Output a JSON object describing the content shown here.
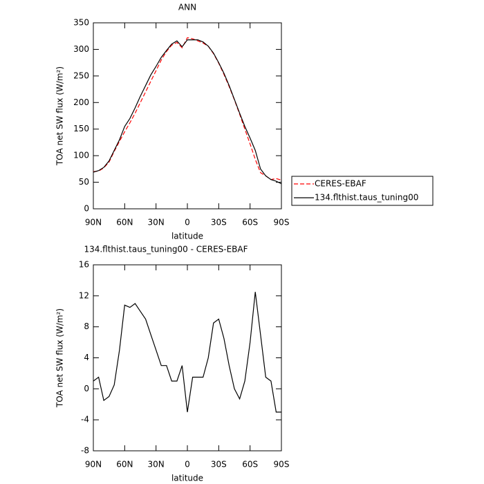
{
  "chart_data": [
    {
      "type": "line",
      "title": "ANN",
      "x_label": "latitude",
      "y_label": "TOA net SW flux (W/m²)",
      "x": [
        90,
        85,
        80,
        75,
        70,
        65,
        60,
        55,
        50,
        45,
        40,
        35,
        30,
        25,
        20,
        15,
        10,
        5,
        0,
        -5,
        -10,
        -15,
        -20,
        -25,
        -30,
        -35,
        -40,
        -45,
        -50,
        -55,
        -60,
        -65,
        -70,
        -75,
        -80,
        -85,
        -90
      ],
      "series": [
        {
          "name": "CERES-EBAF",
          "color": "#ff0000",
          "dashed": true,
          "values": [
            70,
            71,
            77,
            88,
            108,
            127,
            145,
            162,
            180,
            200,
            220,
            240,
            260,
            280,
            296,
            308,
            313,
            303,
            322,
            320,
            316,
            312,
            306,
            292,
            274,
            253,
            230,
            205,
            178,
            150,
            122,
            93,
            68,
            62,
            55,
            57,
            54
          ]
        },
        {
          "name": "134.flthist.taus_tuning00",
          "color": "#000000",
          "dashed": false,
          "values": [
            69,
            72,
            78,
            90,
            110,
            130,
            155,
            170,
            190,
            212,
            232,
            252,
            268,
            285,
            298,
            310,
            316,
            305,
            318,
            318,
            318,
            314,
            306,
            293,
            275,
            255,
            232,
            206,
            180,
            155,
            133,
            110,
            75,
            62,
            55,
            52,
            47
          ]
        }
      ],
      "xlim": [
        90,
        -90
      ],
      "xticks": [
        {
          "value": 90,
          "label": "90N"
        },
        {
          "value": 60,
          "label": "60N"
        },
        {
          "value": 30,
          "label": "30N"
        },
        0,
        {
          "value": -30,
          "label": "30S"
        },
        {
          "value": -60,
          "label": "60S"
        },
        {
          "value": -90,
          "label": "90S"
        }
      ],
      "ylim": [
        0,
        350
      ],
      "yticks": [
        0,
        50,
        100,
        150,
        200,
        250,
        300,
        350
      ],
      "legend": "right"
    },
    {
      "type": "line",
      "title": "134.flthist.taus_tuning00 - CERES-EBAF",
      "x_label": "latitude",
      "y_label": "TOA net SW flux (W/m²)",
      "x": [
        90,
        85,
        80,
        75,
        70,
        65,
        60,
        55,
        50,
        45,
        40,
        35,
        30,
        25,
        20,
        15,
        10,
        5,
        0,
        -5,
        -10,
        -15,
        -20,
        -25,
        -30,
        -35,
        -40,
        -45,
        -50,
        -55,
        -60,
        -65,
        -70,
        -75,
        -80,
        -85,
        -90
      ],
      "series": [
        {
          "color": "#000000",
          "dashed": false,
          "values": [
            1,
            1.5,
            -1.5,
            -1,
            0.5,
            5,
            10.8,
            10.5,
            11,
            10,
            9,
            7,
            5,
            3,
            3,
            1,
            1,
            3,
            -3,
            1.5,
            1.5,
            1.5,
            4,
            8.5,
            9,
            6.5,
            3,
            0,
            -1.3,
            1,
            6,
            12.5,
            7,
            1.5,
            1,
            -3,
            -3
          ]
        }
      ],
      "xlim": [
        90,
        -90
      ],
      "xticks": [
        {
          "value": 90,
          "label": "90N"
        },
        {
          "value": 60,
          "label": "60N"
        },
        {
          "value": 30,
          "label": "30N"
        },
        0,
        {
          "value": -30,
          "label": "30S"
        },
        {
          "value": -60,
          "label": "60S"
        },
        {
          "value": -90,
          "label": "90S"
        }
      ],
      "ylim": [
        -8,
        16
      ],
      "yticks": [
        -8,
        -4,
        0,
        4,
        8,
        12,
        16
      ]
    }
  ]
}
